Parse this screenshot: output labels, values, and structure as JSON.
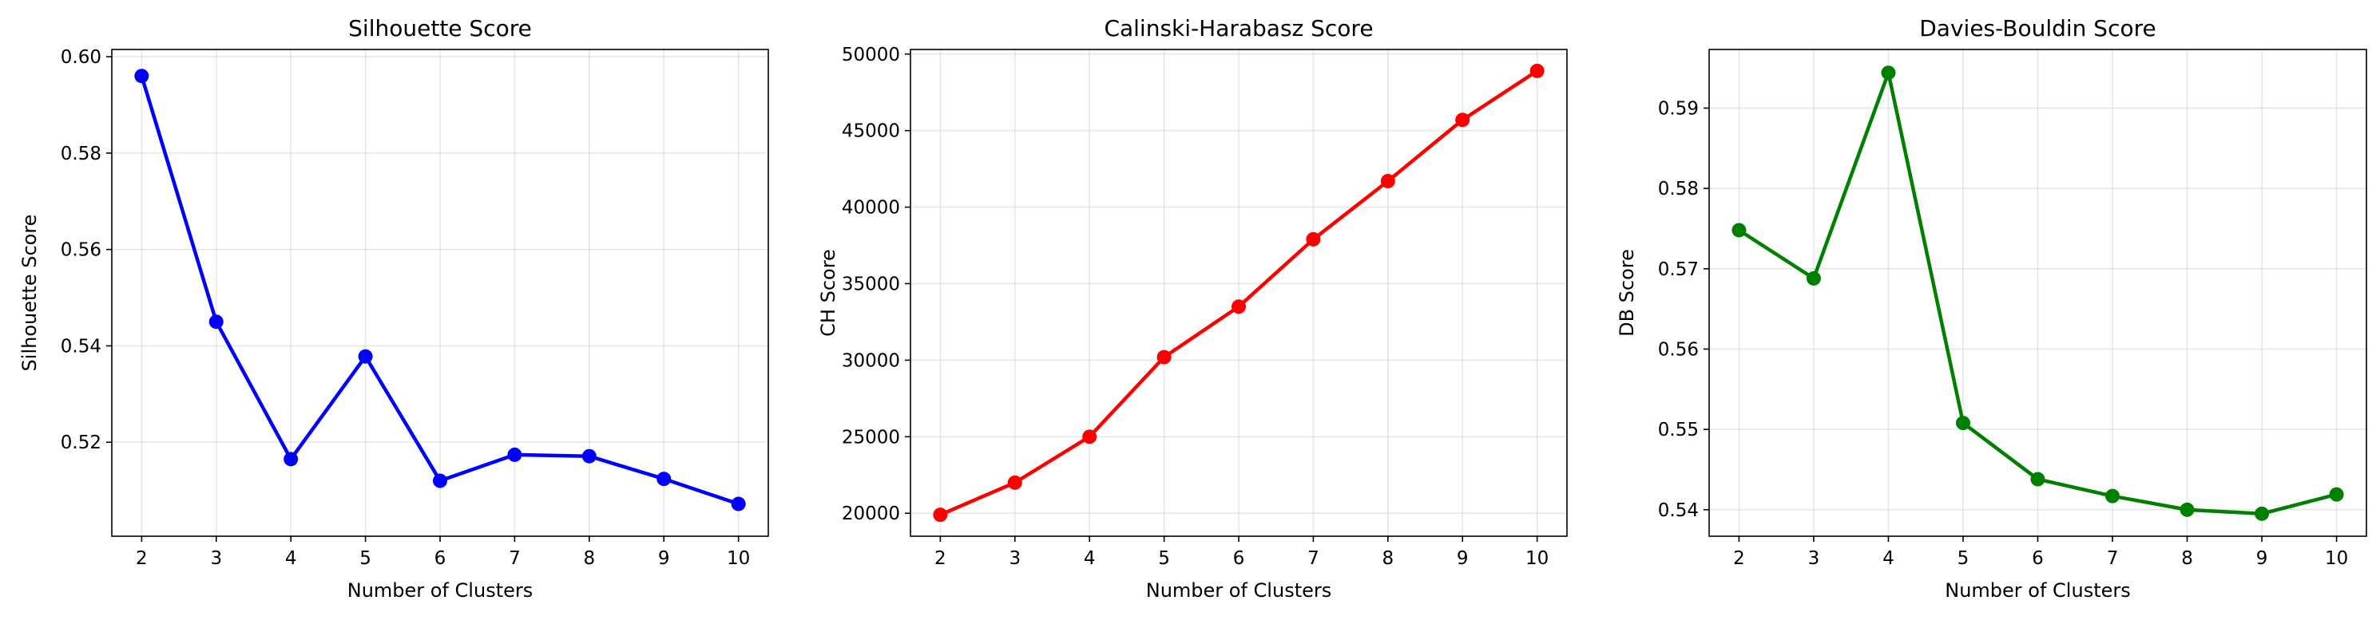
{
  "chart_data": [
    {
      "type": "line",
      "title": "Silhouette Score",
      "xlabel": "Number of Clusters",
      "ylabel": "Silhouette Score",
      "x": [
        2,
        3,
        4,
        5,
        6,
        7,
        8,
        9,
        10
      ],
      "xticks": [
        "2",
        "3",
        "4",
        "5",
        "6",
        "7",
        "8",
        "9",
        "10"
      ],
      "xlim": [
        1.6,
        10.4
      ],
      "ylim": [
        0.5005,
        0.6015
      ],
      "yticks": [
        "0.52",
        "0.54",
        "0.56",
        "0.58",
        "0.60"
      ],
      "ytick_values": [
        0.52,
        0.54,
        0.56,
        0.58,
        0.6
      ],
      "color": "#0000ff",
      "grid": true,
      "series": [
        {
          "values": [
            0.596,
            0.545,
            0.5165,
            0.5378,
            0.512,
            0.5174,
            0.5171,
            0.5124,
            0.5072
          ]
        }
      ]
    },
    {
      "type": "line",
      "title": "Calinski-Harabasz Score",
      "xlabel": "Number of Clusters",
      "ylabel": "CH Score",
      "x": [
        2,
        3,
        4,
        5,
        6,
        7,
        8,
        9,
        10
      ],
      "xticks": [
        "2",
        "3",
        "4",
        "5",
        "6",
        "7",
        "8",
        "9",
        "10"
      ],
      "xlim": [
        1.6,
        10.4
      ],
      "ylim": [
        18500,
        50300
      ],
      "yticks": [
        "20000",
        "25000",
        "30000",
        "35000",
        "40000",
        "45000",
        "50000"
      ],
      "ytick_values": [
        20000,
        25000,
        30000,
        35000,
        40000,
        45000,
        50000
      ],
      "color": "#ff0000",
      "grid": true,
      "series": [
        {
          "values": [
            19900,
            22000,
            25000,
            30200,
            33500,
            37900,
            41700,
            45700,
            48900
          ]
        }
      ]
    },
    {
      "type": "line",
      "title": "Davies-Bouldin Score",
      "xlabel": "Number of Clusters",
      "ylabel": "DB Score",
      "x": [
        2,
        3,
        4,
        5,
        6,
        7,
        8,
        9,
        10
      ],
      "xticks": [
        "2",
        "3",
        "4",
        "5",
        "6",
        "7",
        "8",
        "9",
        "10"
      ],
      "xlim": [
        1.6,
        10.4
      ],
      "ylim": [
        0.5367,
        0.5973
      ],
      "yticks": [
        "0.54",
        "0.55",
        "0.56",
        "0.57",
        "0.58",
        "0.59"
      ],
      "ytick_values": [
        0.54,
        0.55,
        0.56,
        0.57,
        0.58,
        0.59
      ],
      "color": "#008000",
      "grid": true,
      "series": [
        {
          "values": [
            0.5748,
            0.5688,
            0.5944,
            0.5508,
            0.5438,
            0.5417,
            0.54,
            0.5395,
            0.5419
          ]
        }
      ]
    }
  ]
}
